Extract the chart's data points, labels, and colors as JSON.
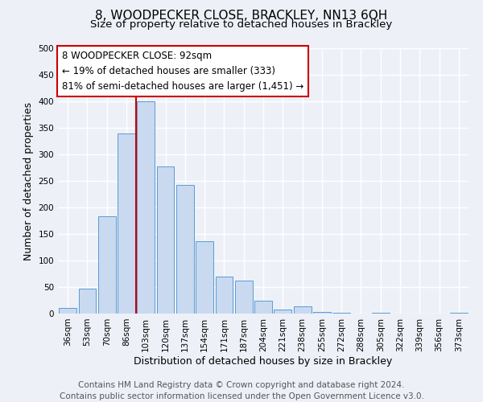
{
  "title": "8, WOODPECKER CLOSE, BRACKLEY, NN13 6QH",
  "subtitle": "Size of property relative to detached houses in Brackley",
  "xlabel": "Distribution of detached houses by size in Brackley",
  "ylabel": "Number of detached properties",
  "bar_labels": [
    "36sqm",
    "53sqm",
    "70sqm",
    "86sqm",
    "103sqm",
    "120sqm",
    "137sqm",
    "154sqm",
    "171sqm",
    "187sqm",
    "204sqm",
    "221sqm",
    "238sqm",
    "255sqm",
    "272sqm",
    "288sqm",
    "305sqm",
    "322sqm",
    "339sqm",
    "356sqm",
    "373sqm"
  ],
  "bar_values": [
    10,
    47,
    184,
    340,
    400,
    278,
    242,
    136,
    70,
    62,
    25,
    8,
    13,
    3,
    1,
    0,
    1,
    0,
    0,
    0,
    2
  ],
  "bar_color": "#c9d9f0",
  "bar_edge_color": "#5b9bd5",
  "vline_color": "#cc0000",
  "ylim": [
    0,
    500
  ],
  "yticks": [
    0,
    50,
    100,
    150,
    200,
    250,
    300,
    350,
    400,
    450,
    500
  ],
  "annotation_title": "8 WOODPECKER CLOSE: 92sqm",
  "annotation_line1": "← 19% of detached houses are smaller (333)",
  "annotation_line2": "81% of semi-detached houses are larger (1,451) →",
  "annotation_box_color": "#ffffff",
  "annotation_box_edge": "#cc0000",
  "footer_line1": "Contains HM Land Registry data © Crown copyright and database right 2024.",
  "footer_line2": "Contains public sector information licensed under the Open Government Licence v3.0.",
  "background_color": "#edf1f7",
  "grid_color": "#ffffff",
  "title_fontsize": 11,
  "subtitle_fontsize": 9.5,
  "axis_label_fontsize": 9,
  "tick_fontsize": 7.5,
  "annotation_fontsize": 8.5,
  "footer_fontsize": 7.5
}
